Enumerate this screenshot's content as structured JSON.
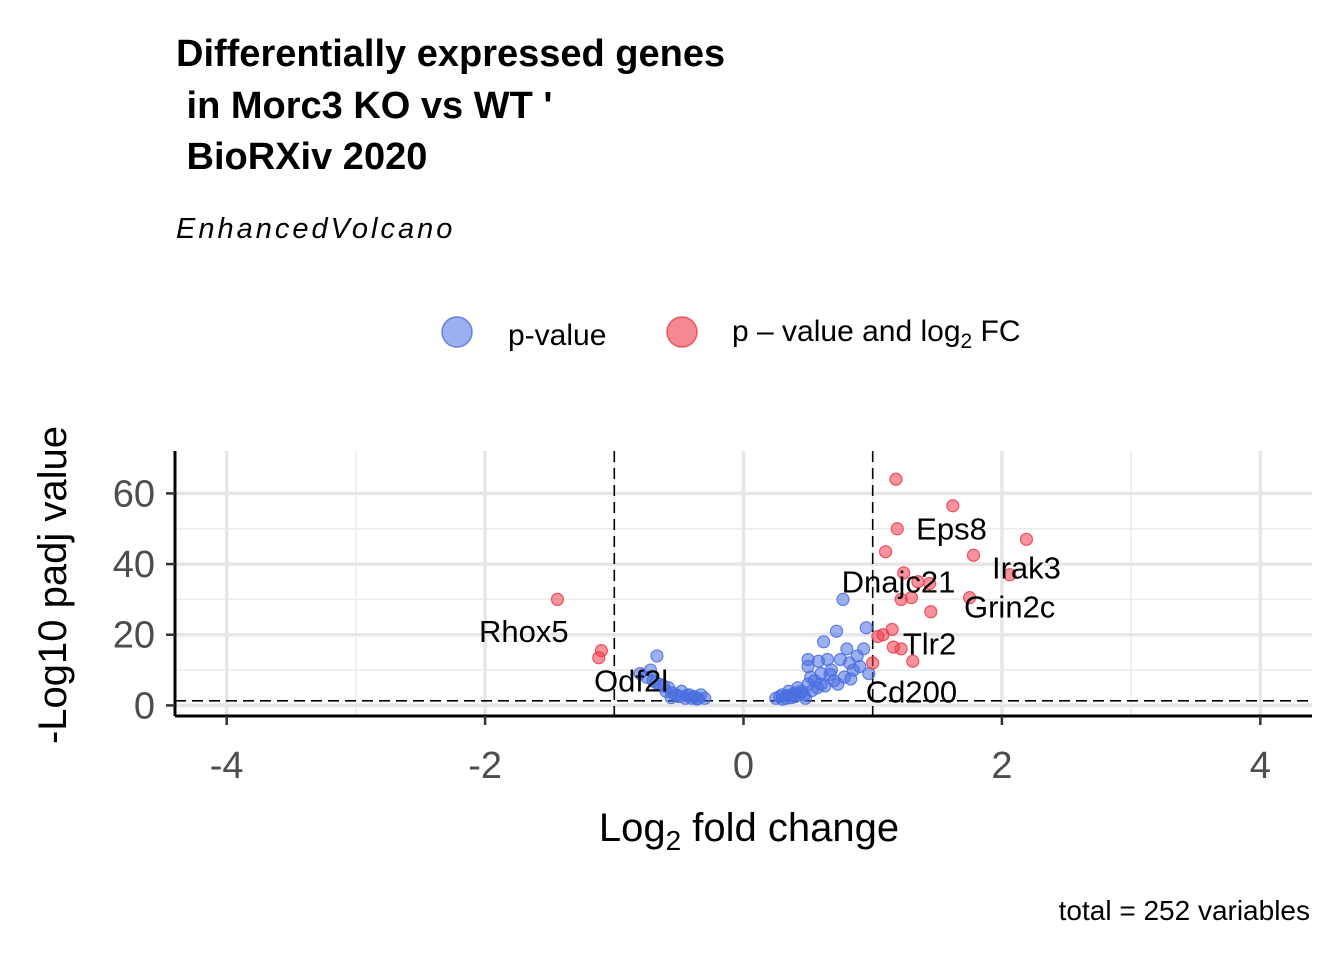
{
  "chart_data": {
    "type": "scatter",
    "title_lines": [
      "Differentially expressed genes",
      " in Morc3 KO vs WT '",
      " BioRXiv 2020"
    ],
    "subtitle": "EnhancedVolcano",
    "xlabel": "Log",
    "xlabel_sub": "2",
    "xlabel_rest": " fold change",
    "ylabel": "-Log10 padj value",
    "xlim": [
      -4.4,
      4.4
    ],
    "ylim": [
      -3,
      72
    ],
    "x_ticks": [
      -4,
      -2,
      0,
      2,
      4
    ],
    "x_tick_labels": [
      "-4",
      "-2",
      "0",
      "2",
      "4"
    ],
    "y_ticks": [
      0,
      20,
      40,
      60
    ],
    "y_tick_labels": [
      "0",
      "20",
      "40",
      "60"
    ],
    "grid": true,
    "fc_cutoff": 1,
    "p_cutoff_y": 1.3,
    "legend_position": "top",
    "caption": "total = 252 variables",
    "legend": [
      {
        "label": "p-value",
        "color": "#4a6ee0"
      },
      {
        "label_prefix": "p – value and log",
        "label_sub": "2",
        "label_suffix": " FC",
        "color": "#ee3a4a"
      }
    ],
    "series": [
      {
        "name": "p-value",
        "color": "#4a6ee0",
        "points": [
          [
            -0.67,
            14
          ],
          [
            -0.72,
            10
          ],
          [
            -0.75,
            8
          ],
          [
            -0.7,
            7
          ],
          [
            -0.65,
            6
          ],
          [
            -0.8,
            9
          ],
          [
            -0.62,
            5.5
          ],
          [
            -0.6,
            4
          ],
          [
            -0.58,
            5
          ],
          [
            -0.55,
            3.5
          ],
          [
            -0.52,
            3
          ],
          [
            -0.5,
            2.5
          ],
          [
            -0.48,
            4
          ],
          [
            -0.45,
            2
          ],
          [
            -0.42,
            3
          ],
          [
            -0.4,
            2
          ],
          [
            -0.38,
            2.5
          ],
          [
            -0.35,
            2
          ],
          [
            -0.33,
            3
          ],
          [
            -0.3,
            2
          ],
          [
            -0.56,
            2.2
          ],
          [
            -0.44,
            2.8
          ],
          [
            -0.36,
            1.8
          ],
          [
            -0.68,
            6.5
          ],
          [
            0.25,
            2
          ],
          [
            0.28,
            2.5
          ],
          [
            0.3,
            3
          ],
          [
            0.33,
            2
          ],
          [
            0.35,
            4
          ],
          [
            0.38,
            3
          ],
          [
            0.4,
            2.5
          ],
          [
            0.42,
            5
          ],
          [
            0.45,
            4
          ],
          [
            0.47,
            3
          ],
          [
            0.5,
            6
          ],
          [
            0.5,
            11
          ],
          [
            0.5,
            13
          ],
          [
            0.52,
            8
          ],
          [
            0.55,
            7
          ],
          [
            0.57,
            5
          ],
          [
            0.6,
            9
          ],
          [
            0.6,
            6
          ],
          [
            0.62,
            18
          ],
          [
            0.65,
            13
          ],
          [
            0.68,
            10
          ],
          [
            0.7,
            7
          ],
          [
            0.72,
            21
          ],
          [
            0.75,
            13
          ],
          [
            0.78,
            8
          ],
          [
            0.8,
            16
          ],
          [
            0.82,
            12
          ],
          [
            0.85,
            10
          ],
          [
            0.88,
            14
          ],
          [
            0.9,
            11
          ],
          [
            0.93,
            16
          ],
          [
            0.95,
            22
          ],
          [
            0.97,
            9
          ],
          [
            0.77,
            30
          ],
          [
            0.3,
            1.8
          ],
          [
            0.37,
            2.2
          ],
          [
            0.44,
            3.4
          ],
          [
            0.53,
            4.2
          ],
          [
            0.63,
            5.5
          ],
          [
            0.73,
            6
          ],
          [
            0.83,
            7.5
          ],
          [
            0.58,
            12.5
          ],
          [
            0.67,
            8.8
          ],
          [
            0.4,
            3.6
          ],
          [
            0.48,
            2
          ],
          [
            0.34,
            2.8
          ]
        ]
      },
      {
        "name": "p – value and log2 FC",
        "color": "#ee3a4a",
        "points": [
          [
            -1.44,
            30
          ],
          [
            -1.1,
            15.5
          ],
          [
            -1.12,
            13.5
          ],
          [
            1.18,
            64
          ],
          [
            1.62,
            56.5
          ],
          [
            1.19,
            50
          ],
          [
            2.19,
            47
          ],
          [
            1.1,
            43.5
          ],
          [
            1.78,
            42.5
          ],
          [
            2.06,
            37
          ],
          [
            1.24,
            37.5
          ],
          [
            1.35,
            35
          ],
          [
            1.44,
            34.5
          ],
          [
            1.3,
            30.5
          ],
          [
            1.22,
            30
          ],
          [
            1.75,
            30.5
          ],
          [
            1.45,
            26.5
          ],
          [
            1.15,
            21.5
          ],
          [
            1.04,
            19.5
          ],
          [
            1.08,
            20
          ],
          [
            1.16,
            16.5
          ],
          [
            1.22,
            16
          ],
          [
            1.31,
            12.5
          ],
          [
            1.0,
            12
          ]
        ]
      }
    ],
    "gene_labels": [
      {
        "name": "Eps8",
        "x": 1.61,
        "y": 50
      },
      {
        "name": "Irak3",
        "x": 2.19,
        "y": 39
      },
      {
        "name": "Dnajc21",
        "x": 1.2,
        "y": 35
      },
      {
        "name": "Grin2c",
        "x": 2.06,
        "y": 28
      },
      {
        "name": "Rhox5",
        "x": -1.7,
        "y": 21
      },
      {
        "name": "Tlr2",
        "x": 1.44,
        "y": 17.5
      },
      {
        "name": "Odf2l",
        "x": -0.87,
        "y": 7
      },
      {
        "name": "Cd200",
        "x": 1.3,
        "y": 4
      }
    ]
  }
}
